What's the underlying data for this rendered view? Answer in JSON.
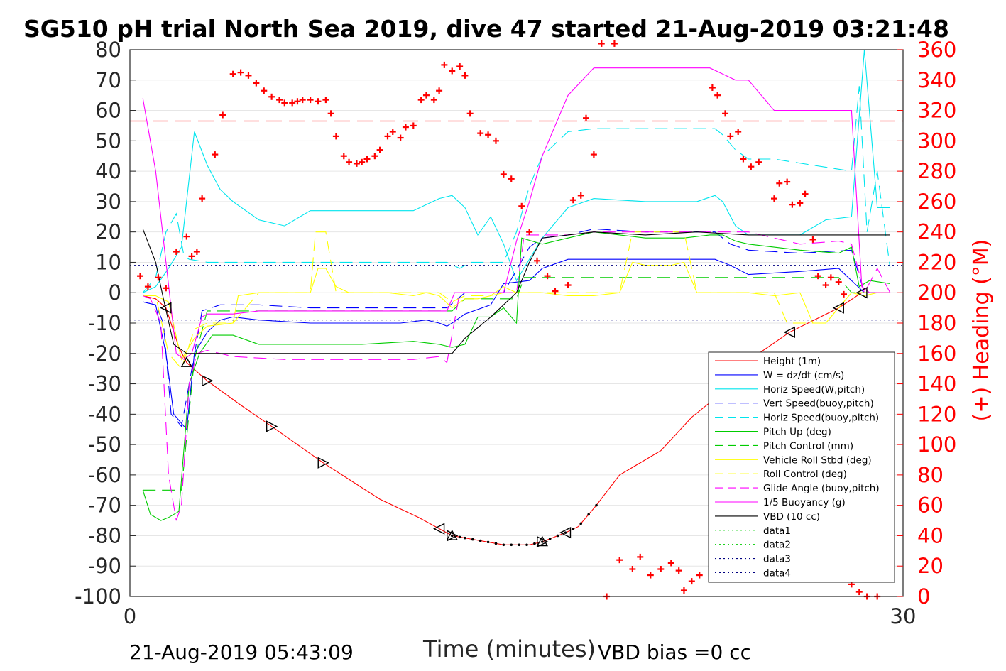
{
  "chart_data": {
    "type": "line",
    "title": "SG510 pH trial North Sea 2019, dive 47 started 21-Aug-2019 03:21:48",
    "xlabel": "Time (minutes)",
    "ylabel_right": "(+) Heading (°M)",
    "xlim": [
      0,
      30
    ],
    "ylim": [
      -100,
      80
    ],
    "ylim_right": [
      0,
      360
    ],
    "x_ticks": [
      "0",
      "30"
    ],
    "y_ticks": [
      "80",
      "70",
      "60",
      "50",
      "40",
      "30",
      "20",
      "10",
      "0",
      "-10",
      "-20",
      "-30",
      "-40",
      "-50",
      "-60",
      "-70",
      "-80",
      "-90",
      "-100"
    ],
    "y_ticks_right": [
      "360",
      "340",
      "320",
      "300",
      "280",
      "260",
      "240",
      "220",
      "200",
      "180",
      "160",
      "140",
      "120",
      "100",
      "80",
      "60",
      "40",
      "20",
      "0"
    ],
    "grid": true,
    "legend_position": "bottom-right",
    "footer_left": "21-Aug-2019 05:43:09",
    "footer_right": "VBD bias =0 cc",
    "colors": {
      "height": "#ff0000",
      "w": "#0000ff",
      "cyan": "#00e5ee",
      "green": "#00cc00",
      "yellow": "#ffff00",
      "magenta": "#ff00ff",
      "black": "#000000",
      "heading": "#ff0000"
    },
    "series": [
      {
        "name": "Height (1m)",
        "color": "#ff0000",
        "dash": "solid",
        "x": [
          0.5,
          1.0,
          1.4,
          1.9,
          2.2,
          3.0,
          4.3,
          5.5,
          7.5,
          9.7,
          11.2,
          12.5,
          14.5,
          15.5,
          16.0,
          16.9,
          17.4,
          18.1,
          19.0,
          20.6,
          21.8,
          23.4,
          24.4,
          25.6,
          27.5,
          28.4,
          29.5
        ],
        "y": [
          -1,
          -2,
          -5,
          -18,
          -23,
          -29,
          -37,
          -44,
          -56,
          -68,
          -74,
          -80,
          -83,
          -83,
          -82,
          -79,
          -77,
          -70,
          -60,
          -52,
          -41,
          -30,
          -20,
          -13,
          -5,
          0,
          0
        ]
      },
      {
        "name": "W = dz/dt (cm/s)",
        "color": "#0000ff",
        "dash": "solid",
        "x": [
          0.5,
          1.0,
          1.4,
          1.7,
          2.2,
          2.5,
          3.0,
          3.5,
          4.0,
          5.0,
          7.0,
          9.0,
          10.5,
          11.5,
          12.0,
          12.3,
          12.5,
          13.0,
          14.0,
          14.5,
          15.5,
          16.0,
          17.0,
          18.0,
          20.0,
          22.0,
          22.7,
          23.3,
          24.0,
          26.0,
          27.5,
          28.0,
          28.5,
          29.5
        ],
        "y": [
          -3,
          -4,
          -20,
          -40,
          -45,
          -20,
          -13,
          -9,
          -8,
          -9,
          -10,
          -10,
          -10,
          -9,
          -10,
          -11,
          -10,
          -7,
          -4,
          3,
          4,
          8,
          11,
          11,
          11,
          11,
          11,
          9,
          6,
          7,
          8,
          4,
          0,
          0
        ]
      },
      {
        "name": "Horiz Speed(W,pitch)",
        "color": "#00e5ee",
        "dash": "solid",
        "x": [
          0.5,
          1.0,
          1.5,
          2.0,
          2.5,
          3.0,
          3.5,
          4.0,
          5.0,
          6.0,
          7.0,
          9.0,
          11.0,
          12.0,
          12.5,
          13.0,
          13.5,
          14.0,
          14.5,
          15.0,
          16.0,
          17.0,
          18.0,
          20.0,
          22.0,
          22.7,
          23.0,
          23.5,
          24.0,
          25.0,
          26.0,
          27.0,
          28.0,
          28.5,
          29.0,
          29.5
        ],
        "y": [
          0,
          2,
          8,
          15,
          53,
          42,
          34,
          30,
          24,
          22,
          27,
          27,
          27,
          31,
          32,
          28,
          19,
          25,
          16,
          4,
          18,
          28,
          31,
          30,
          30,
          32,
          30,
          22,
          19,
          19,
          19,
          24,
          25,
          80,
          28,
          28
        ]
      },
      {
        "name": "Vert Speed(buoy,pitch)",
        "color": "#0000ff",
        "dash": "dashed",
        "x": [
          0.5,
          1.0,
          1.3,
          1.6,
          2.0,
          2.3,
          2.8,
          3.5,
          5.0,
          7.0,
          9.0,
          11.0,
          12.0,
          12.3,
          13.0,
          14.0,
          14.5,
          15.5,
          16.0,
          17.0,
          18.0,
          20.0,
          22.0,
          22.7,
          23.3,
          24.0,
          26.0,
          28.0,
          28.5,
          29.5
        ],
        "y": [
          -3,
          -4,
          -10,
          -40,
          -44,
          -30,
          -6,
          -4,
          -4,
          -5,
          -5,
          -5,
          -5,
          -5,
          0,
          0,
          0,
          15,
          18,
          19,
          21,
          20,
          20,
          20,
          16,
          14,
          13,
          14,
          0,
          0
        ]
      },
      {
        "name": "Horiz Speed(buoy,pitch)",
        "color": "#00e5ee",
        "dash": "dashed",
        "x": [
          0.5,
          1.0,
          1.4,
          1.8,
          2.1,
          2.3,
          3.0,
          4.0,
          6.0,
          8.0,
          10.0,
          11.5,
          12.0,
          12.3,
          12.8,
          13.2,
          14.5,
          15.0,
          15.5,
          16.0,
          17.0,
          18.0,
          20.0,
          22.0,
          22.7,
          23.0,
          23.5,
          24.0,
          25.0,
          26.5,
          28.0,
          28.3,
          28.6,
          29.0,
          29.5
        ],
        "y": [
          0,
          5,
          20,
          26,
          12,
          11,
          10,
          10,
          10,
          10,
          10,
          10,
          10,
          10,
          8,
          10,
          10,
          20,
          35,
          45,
          53,
          54,
          54,
          54,
          54,
          52,
          47,
          44,
          44,
          42,
          40,
          68,
          20,
          40,
          8
        ]
      },
      {
        "name": "Pitch Up (deg)",
        "color": "#00cc00",
        "dash": "solid",
        "x": [
          0.5,
          0.8,
          1.2,
          1.5,
          1.9,
          2.3,
          2.7,
          3.2,
          4.0,
          5.0,
          7.0,
          9.0,
          11.0,
          12.0,
          12.5,
          13.0,
          13.5,
          14.0,
          14.5,
          15.0,
          15.2,
          16.0,
          17.0,
          18.0,
          20.0,
          21.5,
          22.5,
          23.0,
          23.5,
          24.0,
          26.0,
          27.5,
          28.0,
          28.3,
          28.7,
          29.5
        ],
        "y": [
          -65,
          -73,
          -75,
          -74,
          -72,
          -30,
          -20,
          -14,
          -14,
          -17,
          -17,
          -17,
          -16,
          -17,
          -18,
          -17,
          -8,
          -8,
          -5,
          -10,
          18,
          16,
          18,
          20,
          18,
          18,
          19,
          19,
          17,
          16,
          14,
          13,
          15,
          2,
          4,
          3
        ]
      },
      {
        "name": "Pitch Control (mm)",
        "color": "#00cc00",
        "dash": "dashed",
        "x": [
          0.5,
          1.0,
          1.5,
          1.8,
          2.0,
          2.5,
          3.0,
          4.0,
          6.0,
          8.0,
          10.0,
          11.0,
          12.0,
          12.5,
          13.0,
          13.5,
          14.0,
          14.5,
          15.0,
          15.3,
          16.0,
          18.0,
          20.0,
          22.0,
          24.0,
          26.0,
          27.5,
          28.0,
          28.5,
          29.5
        ],
        "y": [
          -65,
          -65,
          -65,
          -65,
          -65,
          -22,
          -6,
          -6,
          -6,
          -6,
          -6,
          -6,
          -6,
          -6,
          -2,
          -2,
          -2,
          -2,
          -2,
          5,
          5,
          5,
          5,
          5,
          5,
          5,
          5,
          0,
          0,
          0
        ]
      },
      {
        "name": "Vehicle Roll Stbd (deg)",
        "color": "#ffff00",
        "dash": "solid",
        "x": [
          0.5,
          1.0,
          1.5,
          2.0,
          2.5,
          3.0,
          4.0,
          4.2,
          5.0,
          6.0,
          7.0,
          7.3,
          7.6,
          8.0,
          8.5,
          9.0,
          10.0,
          11.0,
          11.5,
          12.0,
          12.5,
          13.0,
          13.5,
          14.0,
          14.5,
          15.0,
          15.3,
          16.0,
          17.0,
          18.0,
          19.0,
          19.5,
          20.0,
          21.0,
          21.5,
          22.0,
          22.5,
          23.0,
          24.0,
          25.0,
          26.0,
          26.5,
          27.0,
          28.0,
          28.5,
          29.0,
          29.5
        ],
        "y": [
          -1,
          -1,
          -3,
          -22,
          -15,
          -11,
          -10,
          -1,
          0,
          0,
          0,
          8,
          8,
          2,
          0,
          0,
          0,
          -1,
          0,
          -1,
          -5,
          -2,
          -2,
          -1,
          2,
          0,
          0,
          0,
          -1,
          -1,
          0,
          10,
          9,
          9,
          10,
          0,
          0,
          0,
          0,
          -1,
          0,
          -10,
          -10,
          0,
          -1,
          0,
          0
        ]
      },
      {
        "name": "Roll Control (deg)",
        "color": "#ffff00",
        "dash": "dashed",
        "x": [
          0.5,
          1.0,
          1.5,
          2.0,
          2.5,
          3.0,
          4.0,
          5.0,
          6.0,
          7.0,
          7.2,
          7.6,
          8.0,
          8.3,
          9.0,
          10.0,
          11.0,
          12.0,
          12.5,
          13.0,
          14.0,
          14.5,
          15.0,
          15.3,
          16.0,
          17.0,
          18.0,
          19.0,
          19.5,
          20.0,
          21.0,
          21.5,
          22.0,
          23.0,
          24.0,
          25.0,
          25.5,
          26.0,
          27.0,
          28.0,
          28.5,
          29.0,
          29.5
        ],
        "y": [
          -1,
          -1,
          -20,
          -25,
          -12,
          -10,
          -10,
          0,
          0,
          0,
          20,
          20,
          0,
          0,
          0,
          0,
          0,
          0,
          -3,
          -1,
          -1,
          0,
          0,
          0,
          0,
          0,
          0,
          0,
          20,
          20,
          20,
          20,
          0,
          0,
          0,
          0,
          -10,
          -10,
          -10,
          0,
          0,
          0,
          0
        ]
      },
      {
        "name": "Glide Angle (buoy,pitch)",
        "color": "#ff00ff",
        "dash": "dashed",
        "x": [
          0.5,
          0.8,
          1.2,
          1.5,
          1.8,
          2.0,
          2.3,
          2.6,
          3.0,
          4.0,
          6.0,
          8.0,
          10.0,
          11.0,
          12.0,
          12.3,
          12.8,
          13.5,
          14.0,
          14.5,
          15.0,
          15.3,
          16.0,
          17.0,
          18.0,
          20.0,
          22.0,
          24.0,
          26.0,
          27.5,
          28.0,
          28.5,
          29.0,
          29.5
        ],
        "y": [
          -1,
          -2,
          -10,
          -60,
          -75,
          -70,
          -30,
          -20,
          -19,
          -21,
          -22,
          -22,
          -22,
          -22,
          -21,
          -23,
          0,
          0,
          0,
          0,
          0,
          19,
          19,
          19,
          20,
          20,
          20,
          20,
          16,
          17,
          16,
          0,
          8,
          0
        ]
      },
      {
        "name": "1/5 Buoyancy (g)",
        "color": "#ff00ff",
        "dash": "solid",
        "x": [
          0.5,
          1.0,
          1.4,
          1.8,
          2.1,
          2.4,
          2.8,
          3.0,
          3.5,
          4.0,
          5.0,
          6.0,
          8.0,
          10.0,
          11.0,
          11.5,
          12.0,
          12.3,
          12.6,
          14.0,
          14.5,
          15.0,
          15.5,
          16.0,
          17.0,
          18.0,
          20.0,
          22.0,
          22.5,
          23.0,
          23.5,
          24.0,
          24.5,
          25.0,
          26.0,
          28.0,
          28.4,
          28.7,
          29.0,
          29.5
        ],
        "y": [
          64,
          40,
          10,
          -20,
          -22,
          -20,
          -8,
          -7,
          -7,
          -7,
          -6,
          -6,
          -6,
          -6,
          -6,
          -6,
          -6,
          -6,
          0,
          0,
          0,
          17,
          30,
          45,
          65,
          74,
          74,
          74,
          74,
          72,
          70,
          70,
          65,
          60,
          60,
          60,
          2,
          0,
          0,
          0
        ]
      },
      {
        "name": "VBD (10 cc)",
        "color": "#000000",
        "dash": "solid",
        "x": [
          0.5,
          1.0,
          1.3,
          1.7,
          2.2,
          3.0,
          5.0,
          7.0,
          9.0,
          11.0,
          12.5,
          13.0,
          14.0,
          15.0,
          15.5,
          16.0,
          17.0,
          18.0,
          20.0,
          22.0,
          24.0,
          26.0,
          28.0,
          28.5,
          29.5
        ],
        "y": [
          21,
          10,
          -2,
          -17,
          -20,
          -20,
          -20,
          -20,
          -20,
          -20,
          -20,
          -15,
          -8,
          0,
          10,
          18,
          19,
          20,
          19,
          20,
          19,
          19,
          19,
          19,
          19
        ]
      },
      {
        "name": "data1",
        "color": "#00cc00",
        "dash": "dotted",
        "x": [],
        "y": []
      },
      {
        "name": "data2",
        "color": "#00cc00",
        "dash": "dotted",
        "x": [],
        "y": []
      },
      {
        "name": "data3",
        "color": "#000080",
        "dash": "dotted",
        "x": [
          0,
          30
        ],
        "y": [
          9,
          9
        ]
      },
      {
        "name": "data4",
        "color": "#000080",
        "dash": "dotted",
        "x": [
          0,
          30
        ],
        "y": [
          -9,
          -9
        ]
      }
    ],
    "heading_reference": 313,
    "heading": {
      "x": [
        0.4,
        0.7,
        1.1,
        1.4,
        1.8,
        2.2,
        2.4,
        2.6,
        2.8,
        3.3,
        3.6,
        4.0,
        4.3,
        4.6,
        4.9,
        5.2,
        5.5,
        5.8,
        6.0,
        6.3,
        6.5,
        6.7,
        7.0,
        7.3,
        7.6,
        7.8,
        8.0,
        8.3,
        8.5,
        8.8,
        9.0,
        9.2,
        9.5,
        9.7,
        10.0,
        10.2,
        10.5,
        10.7,
        11.0,
        11.3,
        11.5,
        11.8,
        12.0,
        12.2,
        12.5,
        12.8,
        13.0,
        13.2,
        13.6,
        13.9,
        14.2,
        14.5,
        14.8,
        15.2,
        15.5,
        15.8,
        16.2,
        16.5,
        17.0,
        17.2,
        17.5,
        17.7,
        18.0,
        18.3,
        18.5,
        18.8,
        19.0,
        19.5,
        19.8,
        20.2,
        20.6,
        21.0,
        21.3,
        21.5,
        21.8,
        22.1,
        22.6,
        22.8,
        23.1,
        23.3,
        23.6,
        23.8,
        24.1,
        24.4,
        25.0,
        25.2,
        25.5,
        25.7,
        26.0,
        26.2,
        26.5,
        26.7,
        27.0,
        27.2,
        27.5,
        27.7,
        28.0,
        28.3,
        28.6,
        29.0
      ],
      "y": [
        211,
        204,
        210,
        203,
        227,
        237,
        224,
        227,
        262,
        291,
        317,
        344,
        345,
        343,
        338,
        333,
        329,
        327,
        325,
        325,
        326,
        327,
        327,
        326,
        327,
        318,
        303,
        290,
        286,
        285,
        286,
        288,
        290,
        294,
        303,
        306,
        302,
        309,
        310,
        327,
        330,
        327,
        333,
        350,
        346,
        349,
        343,
        318,
        305,
        304,
        300,
        278,
        275,
        257,
        240,
        221,
        211,
        201,
        205,
        261,
        264,
        315,
        291,
        371,
        0,
        374,
        24,
        18,
        26,
        14,
        18,
        22,
        17,
        4,
        10,
        14,
        335,
        330,
        318,
        303,
        306,
        288,
        283,
        286,
        262,
        272,
        273,
        258,
        259,
        265,
        235,
        211,
        205,
        210,
        207,
        199,
        8,
        3,
        0,
        0
      ]
    },
    "markers": {
      "left_triangle_x": [
        1.4,
        12.0,
        16.9,
        23.4,
        25.6,
        27.5,
        28.4
      ],
      "right_triangle_x": [
        3.0,
        5.5,
        7.5,
        12.5,
        16.0
      ],
      "up_triangle_x": [
        2.2,
        12.5,
        16.0
      ],
      "dots_x": [
        12.5,
        12.8,
        13.0,
        13.3,
        13.6,
        13.9,
        14.2,
        14.5,
        14.8,
        15.1,
        15.4,
        15.7,
        16.0,
        16.3,
        16.6,
        16.9,
        17.2,
        17.5,
        17.8,
        18.1
      ]
    }
  }
}
